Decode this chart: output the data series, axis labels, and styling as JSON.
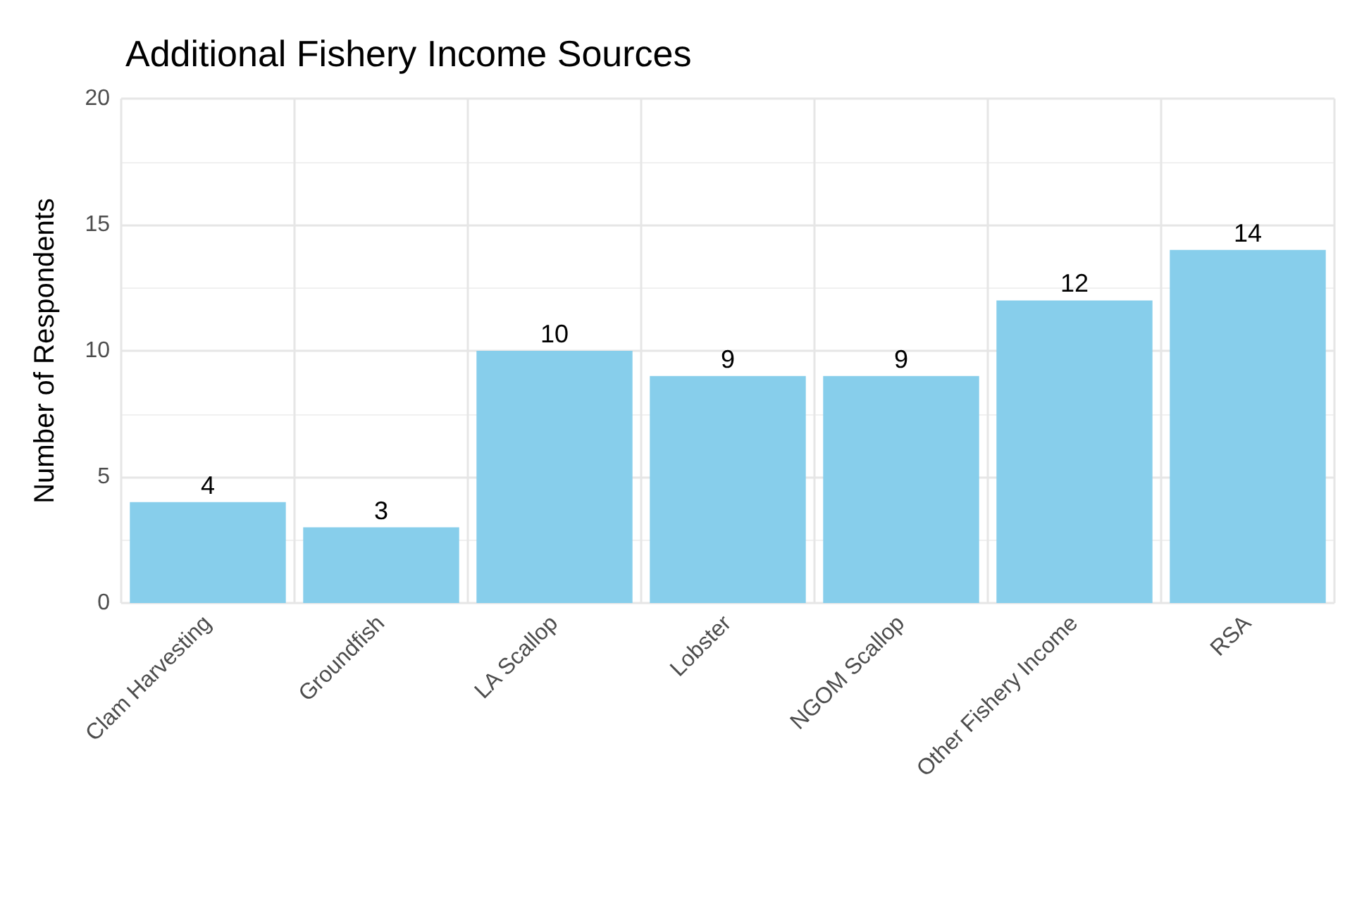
{
  "chart_data": {
    "type": "bar",
    "title": "Additional Fishery Income Sources",
    "ylabel": "Number of Respondents",
    "categories": [
      "Clam Harvesting",
      "Groundfish",
      "LA Scallop",
      "Lobster",
      "NGOM Scallop",
      "Other Fishery Income",
      "RSA"
    ],
    "values": [
      4,
      3,
      10,
      9,
      9,
      12,
      14
    ],
    "color": "#87ceeb",
    "ylim": [
      0,
      20
    ],
    "yticks": [
      0,
      5,
      10,
      15,
      20
    ],
    "grid": true,
    "data_labels": true
  }
}
